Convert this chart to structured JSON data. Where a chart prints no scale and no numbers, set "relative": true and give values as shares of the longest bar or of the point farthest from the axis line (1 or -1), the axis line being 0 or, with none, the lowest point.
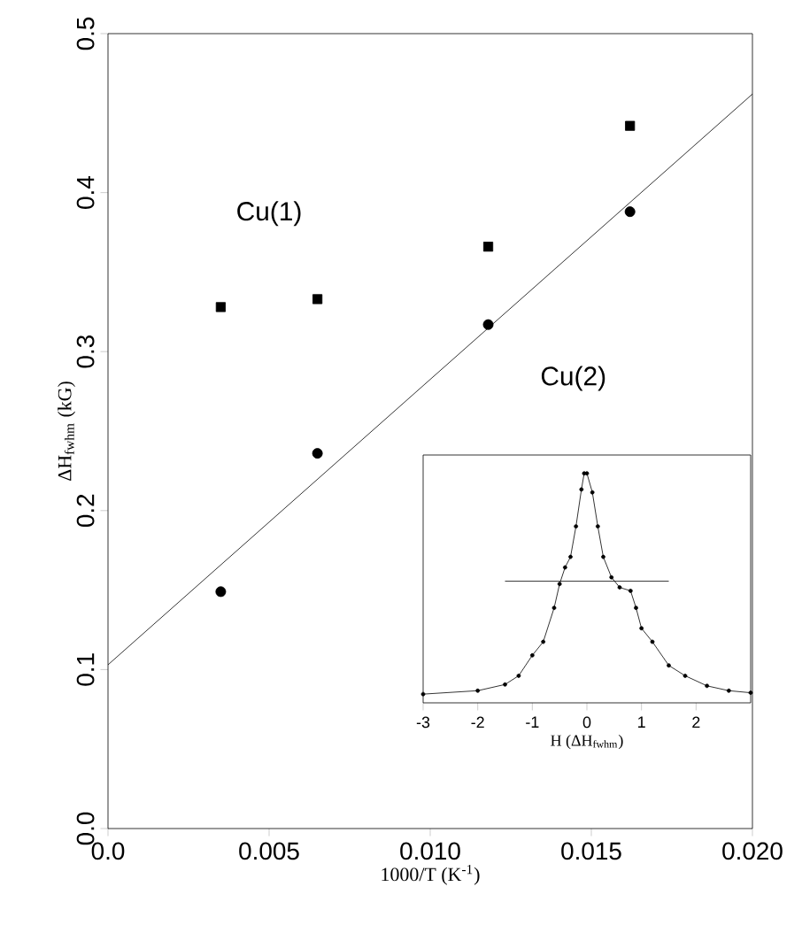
{
  "chart_data": [
    {
      "type": "scatter",
      "xlabel": "1000/T (K$^{-1}$)",
      "ylabel": "ΔH$_{fwhm}$ (kG)",
      "xlim": [
        0,
        0.02
      ],
      "ylim": [
        0,
        0.5
      ],
      "xticks": [
        {
          "value": 0,
          "label": "0.0"
        },
        {
          "value": 0.005,
          "label": "0.005"
        },
        {
          "value": 0.01,
          "label": "0.010"
        },
        {
          "value": 0.015,
          "label": "0.015"
        },
        {
          "value": 0.02,
          "label": "0.020"
        }
      ],
      "yticks": [
        {
          "value": 0,
          "label": "0.0"
        },
        {
          "value": 0.1,
          "label": "0.1"
        },
        {
          "value": 0.2,
          "label": "0.2"
        },
        {
          "value": 0.3,
          "label": "0.3"
        },
        {
          "value": 0.4,
          "label": "0.4"
        },
        {
          "value": 0.5,
          "label": "0.5"
        }
      ],
      "series": [
        {
          "name": "Cu(1)",
          "color": "#000000",
          "marker": "square",
          "x": [
            0.0035,
            0.0065,
            0.0118,
            0.0162
          ],
          "values": [
            0.328,
            0.333,
            0.366,
            0.442
          ]
        },
        {
          "name": "Cu(2)",
          "color": "#000000",
          "marker": "circle",
          "x": [
            0.0035,
            0.0065,
            0.0118,
            0.0162
          ],
          "values": [
            0.149,
            0.236,
            0.317,
            0.388
          ]
        },
        {
          "type": "line",
          "color": "#000000",
          "marker": "none",
          "x": [
            0,
            0.02
          ],
          "values": [
            0.103,
            0.462
          ]
        }
      ]
    },
    {
      "type": "line",
      "relative": true,
      "xlabel": "H (ΔH$_{fwhm}$)",
      "xlim": [
        -3,
        3
      ],
      "xticks": [
        -3,
        -2,
        -1,
        0,
        1,
        2
      ],
      "tick_labels": "x",
      "series": [
        {
          "color": "#000000",
          "marker": "circle",
          "x": [
            -3,
            -2,
            -1.5,
            -1.25,
            -1.0,
            -0.8,
            -0.6,
            -0.5,
            -0.4,
            -0.3,
            -0.2,
            -0.1,
            -0.05,
            0.0,
            0.1,
            0.2,
            0.3,
            0.45,
            0.6,
            0.8,
            0.9,
            1.0,
            1.2,
            1.5,
            1.8,
            2.2,
            2.6,
            3.0
          ],
          "values": [
            0.038,
            0.053,
            0.08,
            0.118,
            0.207,
            0.266,
            0.414,
            0.518,
            0.59,
            0.636,
            0.769,
            0.93,
            1.0,
            1.0,
            0.917,
            0.769,
            0.636,
            0.547,
            0.503,
            0.488,
            0.414,
            0.325,
            0.266,
            0.163,
            0.118,
            0.074,
            0.053,
            0.044
          ]
        },
        {
          "color": "#000000",
          "marker": "none",
          "x": [
            -1.5,
            1.5
          ],
          "values": [
            0.53,
            0.53
          ]
        }
      ]
    }
  ]
}
